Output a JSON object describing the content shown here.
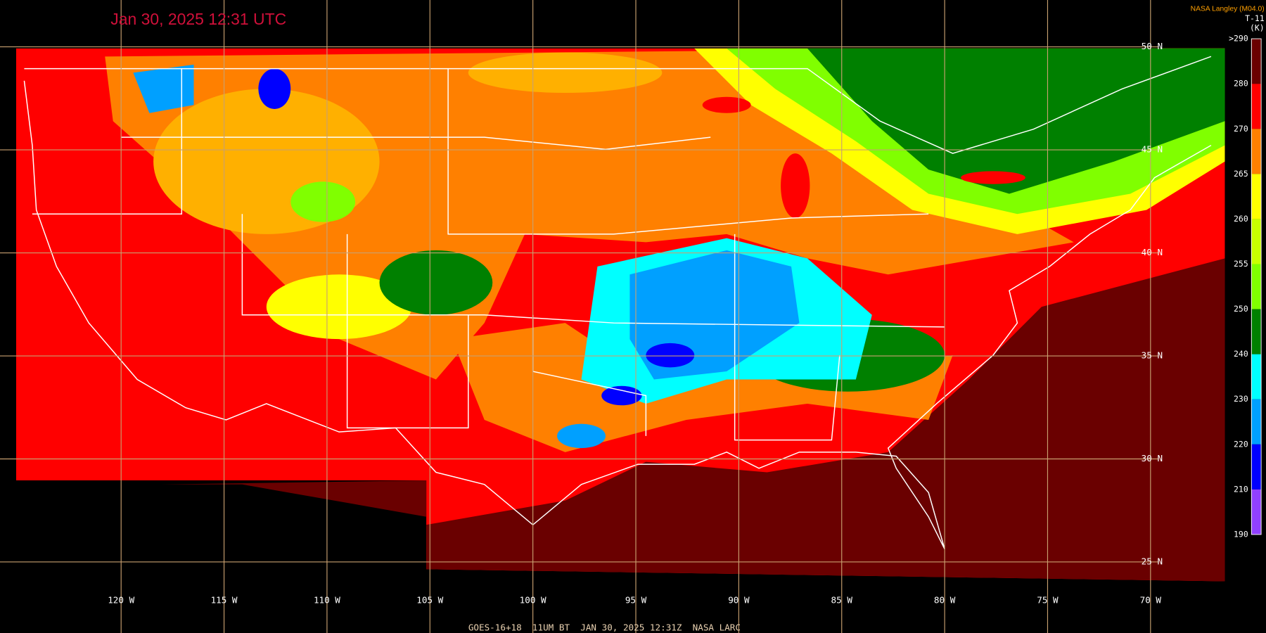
{
  "header": {
    "timestamp": "Jan 30, 2025 12:31 UTC",
    "credit": "NASA Langley (M04.0)"
  },
  "colorbar": {
    "title": "T-11",
    "unit": "(K)",
    "labels": [
      ">290",
      "280",
      "270",
      "265",
      "260",
      "255",
      "250",
      "240",
      "230",
      "220",
      "210",
      "190"
    ],
    "colors": [
      "#6a0000",
      "#ff0000",
      "#ff8000",
      "#ffff00",
      "#c8ff00",
      "#80ff00",
      "#008000",
      "#00ffff",
      "#00a0ff",
      "#0000ff",
      "#9040ff"
    ]
  },
  "longitude_labels": [
    "120 W",
    "115 W",
    "110 W",
    "105 W",
    "100 W",
    "95 W",
    "90 W",
    "85 W",
    "80 W",
    "75 W",
    "70 W"
  ],
  "latitude_labels": [
    "50 N",
    "45 N",
    "40 N",
    "35 N",
    "30 N",
    "25 N"
  ],
  "footer": "GOES-16+18  11UM BT  JAN 30, 2025 12:31Z  NASA LARC"
}
